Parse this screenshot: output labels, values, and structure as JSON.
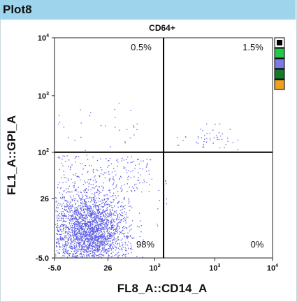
{
  "window": {
    "title": "Plot8"
  },
  "chart_data": {
    "type": "scatter",
    "title": "CD64+",
    "xlabel": "FL8_A::CD14_A",
    "ylabel": "FL1_A::GPI_A",
    "x_scale": "biexponential",
    "y_scale": "biexponential",
    "xlim": [
      -5.0,
      10000
    ],
    "ylim": [
      -5.0,
      10000
    ],
    "x_ticks": [
      {
        "base": "-5.0",
        "exp": ""
      },
      {
        "base": "26",
        "exp": ""
      },
      {
        "base": "10",
        "exp": "2"
      },
      {
        "base": "10",
        "exp": "3"
      },
      {
        "base": "10",
        "exp": "4"
      }
    ],
    "y_ticks": [
      {
        "base": "-5.0",
        "exp": ""
      },
      {
        "base": "26",
        "exp": ""
      },
      {
        "base": "10",
        "exp": "2"
      },
      {
        "base": "10",
        "exp": "3"
      },
      {
        "base": "10",
        "exp": "4"
      }
    ],
    "quadrant_gate": {
      "x": 140,
      "y": 100
    },
    "quadrants": {
      "upper_left": "0.5%",
      "upper_right": "1.5%",
      "lower_left": "98%",
      "lower_right": "0%"
    },
    "point_color": "#5a5ae6",
    "grid": false,
    "legend": "none"
  },
  "palette": {
    "swatches": [
      {
        "name": "black-on-white",
        "color": "#ffffff"
      },
      {
        "name": "green",
        "color": "#22c84a"
      },
      {
        "name": "blue",
        "color": "#7a7ae0"
      },
      {
        "name": "dark-green",
        "color": "#147a2a"
      },
      {
        "name": "orange",
        "color": "#f0a020"
      }
    ]
  }
}
